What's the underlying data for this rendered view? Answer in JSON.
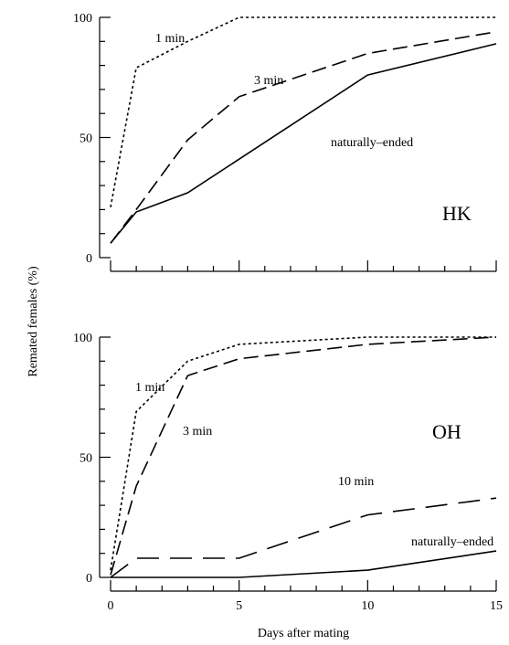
{
  "chart_data": [
    {
      "type": "line",
      "panel_label": "HK",
      "ylabel": "Remated females (%)",
      "xlim": [
        0,
        15
      ],
      "ylim": [
        0,
        100
      ],
      "y_ticks": [
        "0",
        "50",
        "100"
      ],
      "series": [
        {
          "name": "1 min",
          "style": "dotted",
          "x": [
            0,
            1,
            3,
            5,
            10,
            15
          ],
          "y": [
            21,
            79,
            90,
            100,
            100,
            100
          ]
        },
        {
          "name": "3 min",
          "style": "dashed",
          "x": [
            0,
            1,
            3,
            5,
            10,
            15
          ],
          "y": [
            6,
            20,
            49,
            67,
            85,
            94
          ]
        },
        {
          "name": "naturally–ended",
          "style": "solid",
          "x": [
            0,
            1,
            3,
            5,
            10,
            15
          ],
          "y": [
            6,
            19,
            27,
            41,
            76,
            89
          ]
        }
      ]
    },
    {
      "type": "line",
      "panel_label": "OH",
      "xlabel": "Days after mating",
      "xlim": [
        0,
        15
      ],
      "ylim": [
        0,
        100
      ],
      "x_ticks": [
        "0",
        "5",
        "10",
        "15"
      ],
      "y_ticks": [
        "0",
        "50",
        "100"
      ],
      "series": [
        {
          "name": "1 min",
          "style": "dotted",
          "x": [
            0,
            1,
            3,
            5,
            10,
            15
          ],
          "y": [
            3,
            69,
            90,
            97,
            100,
            100
          ]
        },
        {
          "name": "3 min",
          "style": "dashed",
          "x": [
            0,
            1,
            3,
            5,
            10,
            15
          ],
          "y": [
            1,
            38,
            84,
            91,
            97,
            100
          ]
        },
        {
          "name": "10 min",
          "style": "longdash",
          "x": [
            0,
            1,
            3,
            5,
            10,
            15
          ],
          "y": [
            0,
            8,
            8,
            8,
            26,
            33
          ]
        },
        {
          "name": "naturally–ended",
          "style": "solid",
          "x": [
            0,
            1,
            3,
            5,
            10,
            15
          ],
          "y": [
            0,
            0,
            0,
            0,
            3,
            11
          ]
        }
      ]
    }
  ]
}
